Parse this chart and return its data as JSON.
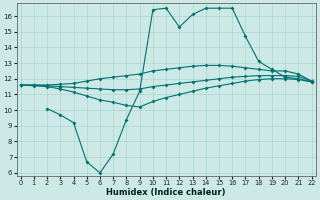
{
  "xlabel": "Humidex (Indice chaleur)",
  "bg_color": "#cce9e6",
  "grid_color": "#aad5d0",
  "line_color": "#007070",
  "xlim": [
    -0.3,
    22.3
  ],
  "ylim": [
    5.8,
    16.8
  ],
  "yticks": [
    6,
    7,
    8,
    9,
    10,
    11,
    12,
    13,
    14,
    15,
    16
  ],
  "xticks": [
    0,
    1,
    2,
    3,
    4,
    5,
    6,
    7,
    8,
    9,
    10,
    11,
    12,
    13,
    14,
    15,
    16,
    17,
    18,
    19,
    20,
    21,
    22
  ],
  "line_wave_x": [
    2,
    3,
    4,
    5,
    6,
    7,
    8,
    9,
    10,
    11,
    12,
    13,
    14,
    15,
    16,
    17,
    18,
    19,
    20,
    21,
    22
  ],
  "line_wave_y": [
    10.1,
    9.7,
    9.2,
    6.7,
    6.0,
    7.2,
    9.4,
    11.2,
    16.4,
    16.5,
    15.3,
    16.1,
    16.5,
    16.5,
    16.5,
    14.7,
    13.1,
    12.6,
    12.1,
    12.0,
    11.8
  ],
  "line_upper_x": [
    0,
    1,
    2,
    3,
    4,
    5,
    6,
    7,
    8,
    9,
    10,
    11,
    12,
    13,
    14,
    15,
    16,
    17,
    18,
    19,
    20,
    21,
    22
  ],
  "line_upper_y": [
    11.6,
    11.6,
    11.6,
    11.65,
    11.7,
    11.85,
    12.0,
    12.1,
    12.2,
    12.3,
    12.5,
    12.6,
    12.7,
    12.8,
    12.85,
    12.85,
    12.8,
    12.7,
    12.6,
    12.5,
    12.5,
    12.3,
    11.85
  ],
  "line_mid_x": [
    0,
    1,
    2,
    3,
    4,
    5,
    6,
    7,
    8,
    9,
    10,
    11,
    12,
    13,
    14,
    15,
    16,
    17,
    18,
    19,
    20,
    21,
    22
  ],
  "line_mid_y": [
    11.6,
    11.6,
    11.55,
    11.5,
    11.45,
    11.4,
    11.35,
    11.3,
    11.3,
    11.35,
    11.5,
    11.6,
    11.7,
    11.8,
    11.9,
    12.0,
    12.1,
    12.15,
    12.2,
    12.2,
    12.2,
    12.15,
    11.85
  ],
  "line_low_x": [
    0,
    1,
    2,
    3,
    4,
    5,
    6,
    7,
    8,
    9,
    10,
    11,
    12,
    13,
    14,
    15,
    16,
    17,
    18,
    19,
    20,
    21,
    22
  ],
  "line_low_y": [
    11.6,
    11.55,
    11.5,
    11.35,
    11.15,
    10.9,
    10.65,
    10.5,
    10.3,
    10.2,
    10.55,
    10.8,
    11.0,
    11.2,
    11.4,
    11.55,
    11.7,
    11.85,
    11.95,
    12.0,
    12.0,
    11.95,
    11.8
  ]
}
